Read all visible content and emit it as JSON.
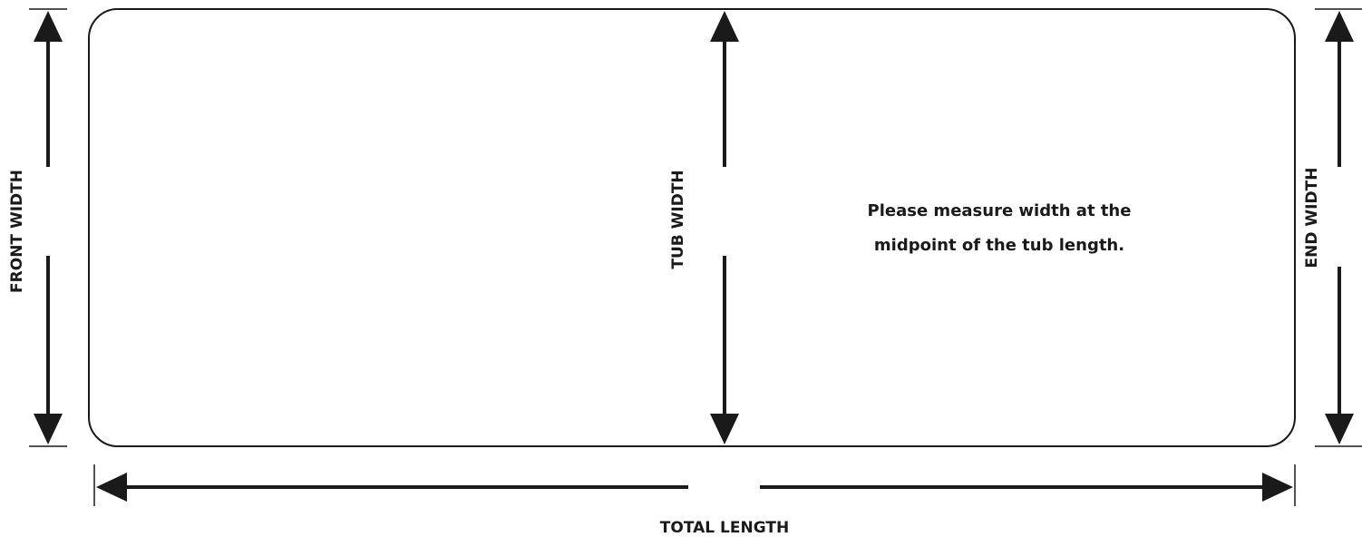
{
  "labels": {
    "front_width": "FRONT WIDTH",
    "tub_width": "TUB WIDTH",
    "end_width": "END WIDTH",
    "total_length": "TOTAL LENGTH"
  },
  "note": {
    "line1": "Please measure width at the",
    "line2": "midpoint of the tub length."
  },
  "colors": {
    "ink": "#1a1a1a",
    "background": "#ffffff"
  }
}
